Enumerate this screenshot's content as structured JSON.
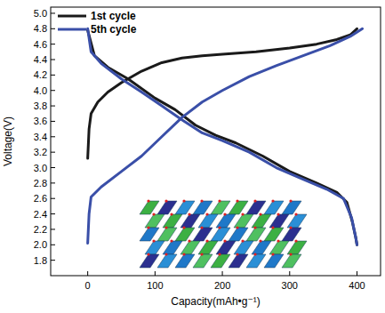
{
  "chart_data": {
    "type": "line",
    "x_label": "Capacity(mAh•g⁻¹)",
    "y_label": "Voltage(V)",
    "xlim": [
      -55,
      435
    ],
    "ylim": [
      1.6,
      5.08
    ],
    "xticks": [
      0,
      100,
      200,
      300,
      400
    ],
    "yticks": [
      {
        "value": 1.8,
        "label": "1.8"
      },
      {
        "value": 2,
        "label": "2.0"
      },
      2.2,
      2.4,
      2.6,
      2.8,
      {
        "value": 3,
        "label": "3.0"
      },
      3.2,
      3.4,
      3.6,
      3.8,
      {
        "value": 4,
        "label": "4.0"
      },
      4.2,
      4.4,
      4.6,
      4.8,
      {
        "value": 5,
        "label": "5.0"
      }
    ],
    "legend": "upper left",
    "grid": false,
    "series": [
      {
        "name": "1st cycle",
        "color": "#1a1a1a",
        "x": [
          0,
          2,
          5,
          15,
          30,
          50,
          80,
          110,
          140,
          170,
          200,
          250,
          300,
          340,
          370,
          390,
          400,
          null,
          0,
          10,
          30,
          60,
          100,
          130,
          160,
          190,
          220,
          260,
          300,
          340,
          370,
          385,
          393,
          398,
          400
        ],
        "values": [
          3.12,
          3.5,
          3.7,
          3.85,
          3.98,
          4.1,
          4.25,
          4.36,
          4.42,
          4.45,
          4.47,
          4.5,
          4.55,
          4.6,
          4.66,
          4.72,
          4.8,
          null,
          4.78,
          4.45,
          4.3,
          4.15,
          3.9,
          3.75,
          3.55,
          3.42,
          3.32,
          3.15,
          2.95,
          2.8,
          2.68,
          2.55,
          2.3,
          2.1,
          2.0
        ]
      },
      {
        "name": "5th cycle",
        "color": "#3a4fa8",
        "x": [
          0,
          2,
          5,
          20,
          50,
          80,
          110,
          140,
          170,
          200,
          240,
          280,
          320,
          360,
          390,
          408,
          null,
          0,
          5,
          20,
          50,
          80,
          110,
          140,
          170,
          200,
          240,
          280,
          320,
          355,
          380,
          392,
          398,
          400
        ],
        "values": [
          2.02,
          2.4,
          2.62,
          2.75,
          2.95,
          3.15,
          3.4,
          3.65,
          3.85,
          4.0,
          4.18,
          4.32,
          4.45,
          4.58,
          4.7,
          4.8,
          null,
          4.8,
          4.5,
          4.35,
          4.15,
          3.98,
          3.8,
          3.62,
          3.45,
          3.35,
          3.2,
          3.0,
          2.85,
          2.72,
          2.6,
          2.35,
          2.1,
          2.0
        ]
      }
    ]
  }
}
